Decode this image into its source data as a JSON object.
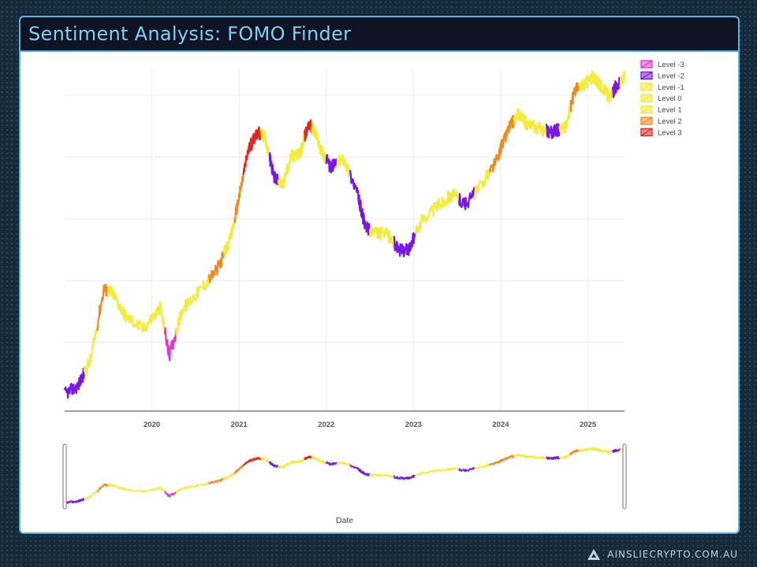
{
  "page": {
    "title": "Sentiment Analysis: FOMO Finder",
    "footer_brand": "AINSLIECRYPTO.COM.AU"
  },
  "chart_data": {
    "type": "line",
    "title": "Sentiment Analysis: FOMO Finder",
    "xlabel": "Date",
    "ylabel": "",
    "x_ticks": [
      "2020",
      "2021",
      "2022",
      "2023",
      "2024",
      "2025"
    ],
    "x_range": [
      2019.0,
      2025.42
    ],
    "y_scale": "log",
    "y_tick_labels_shown": false,
    "grid": true,
    "legend_position": "top-right",
    "legend": [
      {
        "name": "Level -3",
        "color": "#e535d0"
      },
      {
        "name": "Level -2",
        "color": "#7b16e8"
      },
      {
        "name": "Level -1",
        "color": "#f0ea3c"
      },
      {
        "name": "Level 0",
        "color": "#f0ea3c"
      },
      {
        "name": "Level 1",
        "color": "#f0ea3c"
      },
      {
        "name": "Level 2",
        "color": "#f08a20"
      },
      {
        "name": "Level 3",
        "color": "#e8251e"
      }
    ],
    "level_colors": {
      "-3": "#e535d0",
      "-2": "#7b16e8",
      "-1": "#f2ec3e",
      "0": "#f2ec3e",
      "1": "#f2ec3e",
      "2": "#f08a20",
      "3": "#e8251e"
    },
    "series": [
      {
        "x": [
          2019.0,
          2019.15,
          2019.3,
          2019.45,
          2019.55,
          2019.7,
          2019.9,
          2020.1,
          2020.2,
          2020.35,
          2020.55,
          2020.75,
          2020.9,
          2021.0,
          2021.1,
          2021.2,
          2021.3,
          2021.4,
          2021.5,
          2021.6,
          2021.7,
          2021.8,
          2021.87,
          2021.95,
          2022.05,
          2022.2,
          2022.35,
          2022.45,
          2022.55,
          2022.7,
          2022.85,
          2022.95,
          2023.1,
          2023.3,
          2023.45,
          2023.6,
          2023.8,
          2023.95,
          2024.1,
          2024.2,
          2024.3,
          2024.45,
          2024.6,
          2024.75,
          2024.85,
          2024.95,
          2025.05,
          2025.15,
          2025.25,
          2025.32,
          2025.42
        ],
        "y": [
          3600,
          3900,
          5200,
          11000,
          10500,
          8200,
          7200,
          9000,
          5400,
          8800,
          10800,
          13500,
          18500,
          29000,
          47000,
          58000,
          55000,
          36000,
          33000,
          45000,
          46000,
          64000,
          58000,
          47000,
          40000,
          44000,
          31000,
          21000,
          20000,
          19500,
          16500,
          16800,
          23000,
          27000,
          30000,
          27000,
          34000,
          43000,
          62000,
          70000,
          63000,
          60000,
          58000,
          62000,
          91000,
          96000,
          104000,
          95000,
          84000,
          94000,
          104000
        ],
        "level": [
          -2,
          -2,
          1,
          2,
          1,
          1,
          1,
          1,
          -3,
          1,
          1,
          2,
          1,
          2,
          3,
          3,
          1,
          -2,
          1,
          1,
          1,
          3,
          1,
          1,
          -2,
          1,
          -2,
          -2,
          1,
          1,
          -2,
          -2,
          1,
          1,
          1,
          -2,
          1,
          2,
          2,
          1,
          1,
          1,
          -2,
          1,
          2,
          1,
          1,
          1,
          1,
          -2,
          1
        ]
      }
    ]
  }
}
